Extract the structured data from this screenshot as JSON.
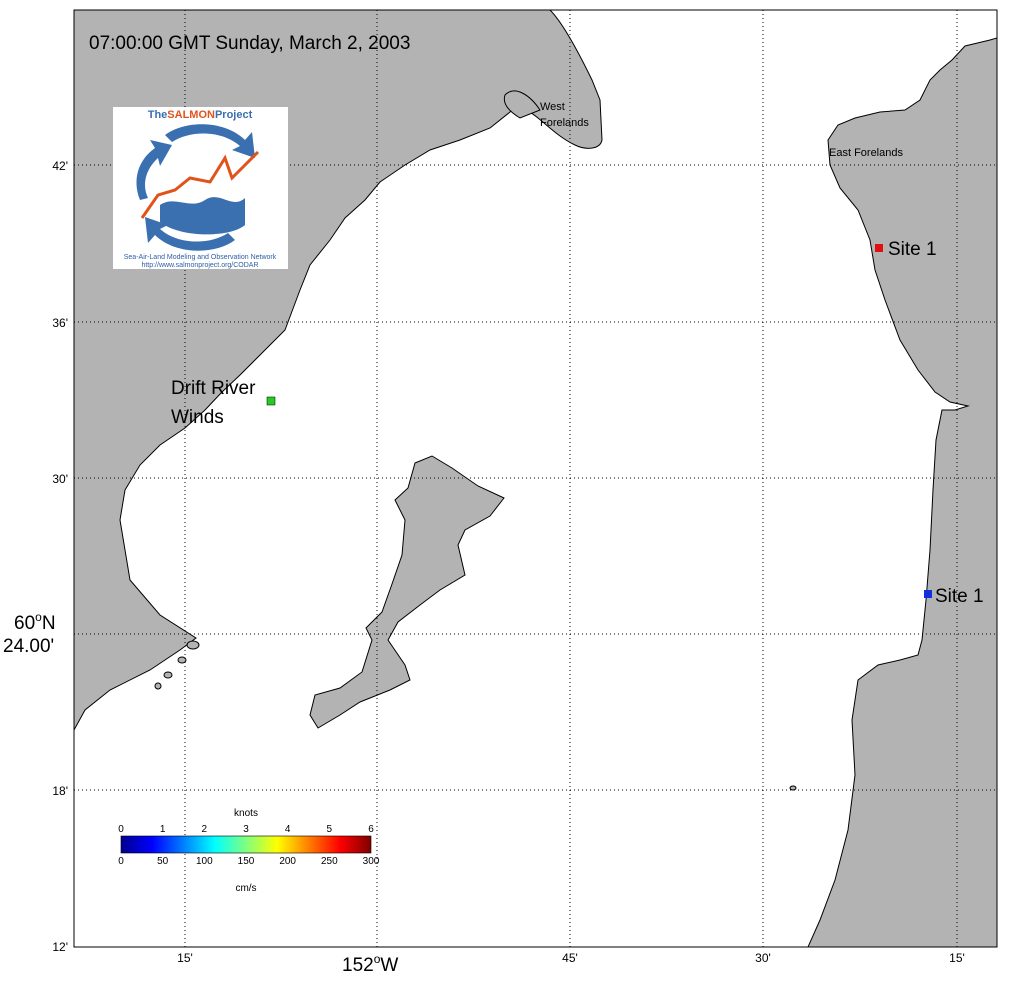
{
  "timestamp": "07:00:00 GMT Sunday, March 2, 2003",
  "lat_ticks": [
    "42'",
    "36'",
    "30'",
    "18'",
    "12'"
  ],
  "lat_main": {
    "deg": "60",
    "deg_unit": "o",
    "hemi": "N",
    "min": "24.00'"
  },
  "lon_ticks": [
    "15'",
    "45'",
    "30'",
    "15'"
  ],
  "lon_main": {
    "deg": "152",
    "deg_unit": "o",
    "hemi": "W"
  },
  "places": {
    "west_forelands_1": "West",
    "west_forelands_2": "Forelands",
    "east_forelands": "East Forelands",
    "drift_river_1": "Drift River",
    "drift_river_2": "Winds"
  },
  "sites": [
    {
      "label": "Site 1",
      "color": "#e01010"
    },
    {
      "label": "Site 1",
      "color": "#1030e0"
    }
  ],
  "drift_marker_color": "#22cc22",
  "logo": {
    "title_a": "The",
    "title_b": "SALMON",
    "title_c": "Project",
    "tagline": "Sea-Air-Land Modeling and Observation Network",
    "url": "http://www.salmonproject.org/CODAR",
    "colors": {
      "blue": "#3a6fb0",
      "orange": "#e0541c"
    }
  },
  "colorbar": {
    "unit_top": "knots",
    "unit_bottom": "cm/s",
    "knots": [
      "0",
      "1",
      "2",
      "3",
      "4",
      "5",
      "6"
    ],
    "cms": [
      "0",
      "50",
      "100",
      "150",
      "200",
      "250",
      "300"
    ],
    "range_knots": [
      0,
      6
    ],
    "colormap": "jet"
  }
}
